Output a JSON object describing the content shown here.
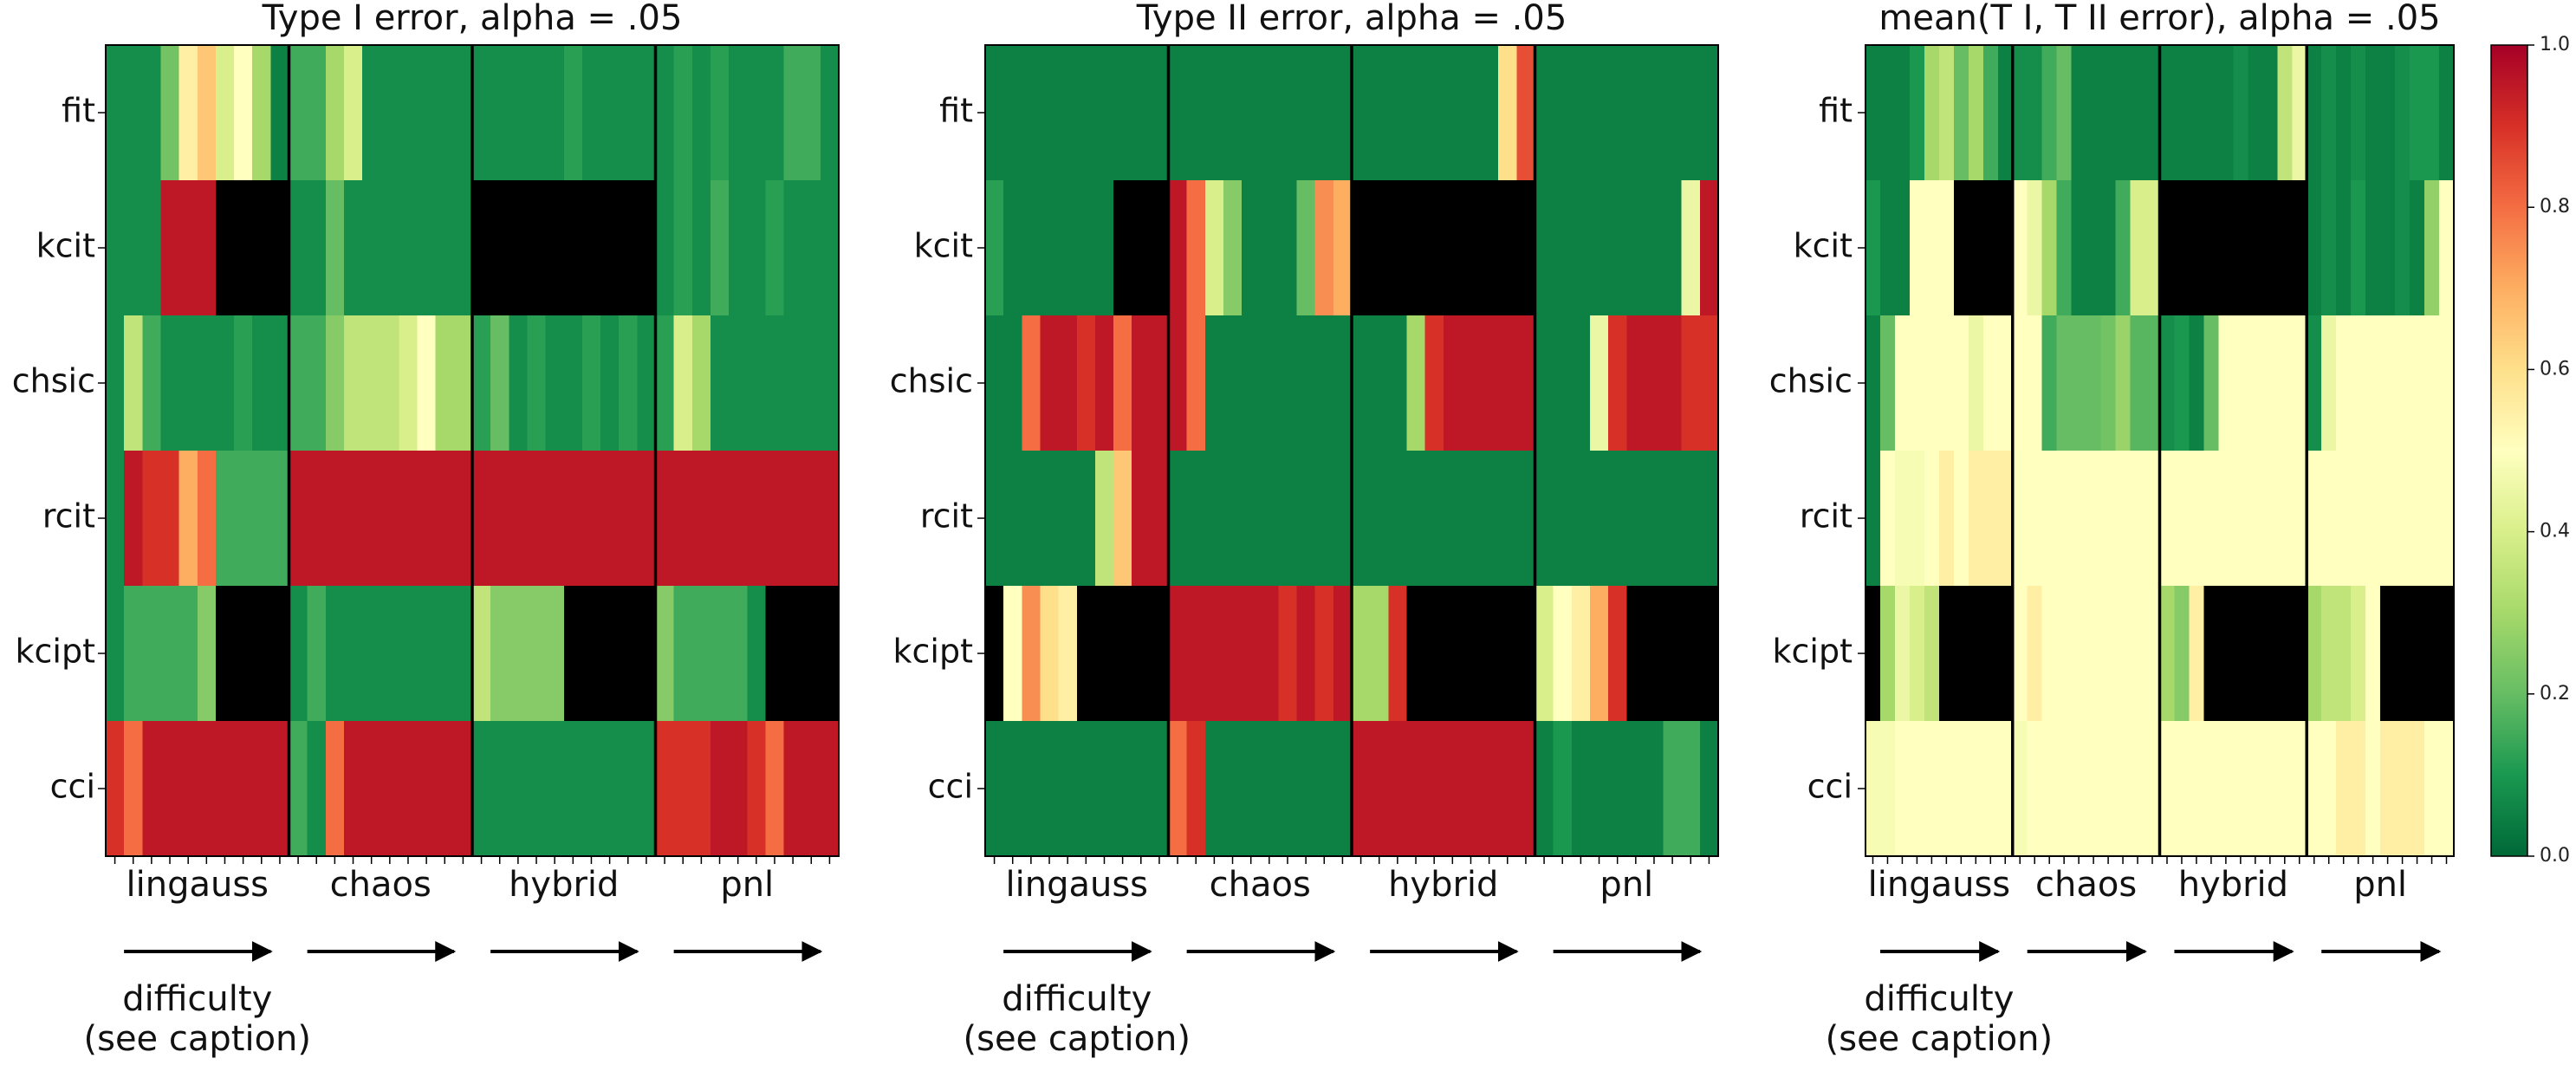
{
  "chart_data": [
    {
      "type": "heatmap",
      "title": "Type I error, alpha = .05",
      "rows": [
        "fit",
        "kcit",
        "chsic",
        "rcit",
        "kcipt",
        "cci"
      ],
      "groups": [
        "lingauss",
        "chaos",
        "hybrid",
        "pnl"
      ],
      "columns_per_group": [
        10,
        10,
        10,
        10
      ],
      "difficulty_label": "difficulty",
      "difficulty_note": "(see caption)",
      "missing_color": "#000000",
      "cells": [
        [
          [
            0.08,
            0.08,
            0.08,
            0.22,
            0.55,
            0.65,
            0.4,
            0.5,
            0.3,
            0.05
          ],
          [
            0.15,
            0.15,
            0.3,
            0.4,
            0.08,
            0.08,
            0.08,
            0.08,
            0.08,
            0.08
          ],
          [
            0.08,
            0.08,
            0.08,
            0.08,
            0.08,
            0.12,
            0.08,
            0.08,
            0.08,
            0.08
          ],
          [
            0.08,
            0.12,
            0.08,
            0.12,
            0.08,
            0.08,
            0.08,
            0.15,
            0.15,
            0.08
          ]
        ],
        [
          [
            0.08,
            0.08,
            0.08,
            0.95,
            0.95,
            0.95,
            null,
            null,
            null,
            null
          ],
          [
            0.08,
            0.08,
            0.2,
            0.08,
            0.08,
            0.08,
            0.08,
            0.08,
            0.08,
            0.08
          ],
          [
            null,
            null,
            null,
            null,
            null,
            null,
            null,
            null,
            null,
            null
          ],
          [
            0.08,
            0.12,
            0.08,
            0.15,
            0.08,
            0.08,
            0.12,
            0.08,
            0.08,
            0.08
          ]
        ],
        [
          [
            0.08,
            0.35,
            0.15,
            0.08,
            0.08,
            0.08,
            0.08,
            0.12,
            0.08,
            0.08
          ],
          [
            0.15,
            0.15,
            0.25,
            0.35,
            0.35,
            0.35,
            0.4,
            0.5,
            0.3,
            0.3
          ],
          [
            0.12,
            0.2,
            0.08,
            0.12,
            0.08,
            0.08,
            0.12,
            0.08,
            0.12,
            0.08
          ],
          [
            0.12,
            0.4,
            0.3,
            0.08,
            0.08,
            0.08,
            0.08,
            0.08,
            0.08,
            0.08
          ]
        ],
        [
          [
            0.08,
            0.95,
            0.9,
            0.9,
            0.7,
            0.8,
            0.15,
            0.15,
            0.15,
            0.15
          ],
          [
            0.95,
            0.95,
            0.95,
            0.95,
            0.95,
            0.95,
            0.95,
            0.95,
            0.95,
            0.95
          ],
          [
            0.95,
            0.95,
            0.95,
            0.95,
            0.95,
            0.95,
            0.95,
            0.95,
            0.95,
            0.95
          ],
          [
            0.95,
            0.95,
            0.95,
            0.95,
            0.95,
            0.95,
            0.95,
            0.95,
            0.95,
            0.95
          ]
        ],
        [
          [
            0.08,
            0.15,
            0.15,
            0.15,
            0.15,
            0.25,
            null,
            null,
            null,
            null
          ],
          [
            0.08,
            0.15,
            0.08,
            0.08,
            0.08,
            0.08,
            0.08,
            0.08,
            0.08,
            0.08
          ],
          [
            0.35,
            0.25,
            0.25,
            0.25,
            0.25,
            null,
            null,
            null,
            null,
            null
          ],
          [
            0.25,
            0.15,
            0.15,
            0.15,
            0.15,
            0.08,
            null,
            null,
            null,
            null
          ]
        ],
        [
          [
            0.9,
            0.8,
            0.95,
            0.95,
            0.95,
            0.95,
            0.95,
            0.95,
            0.95,
            0.95
          ],
          [
            0.15,
            0.08,
            0.8,
            0.95,
            0.95,
            0.95,
            0.95,
            0.95,
            0.95,
            0.95
          ],
          [
            0.08,
            0.08,
            0.08,
            0.08,
            0.08,
            0.08,
            0.08,
            0.08,
            0.08,
            0.08
          ],
          [
            0.9,
            0.9,
            0.9,
            0.95,
            0.95,
            0.9,
            0.8,
            0.95,
            0.95,
            0.95
          ]
        ]
      ]
    },
    {
      "type": "heatmap",
      "title": "Type II error, alpha = .05",
      "rows": [
        "fit",
        "kcit",
        "chsic",
        "rcit",
        "kcipt",
        "cci"
      ],
      "groups": [
        "lingauss",
        "chaos",
        "hybrid",
        "pnl"
      ],
      "columns_per_group": [
        10,
        10,
        10,
        10
      ],
      "difficulty_label": "difficulty",
      "difficulty_note": "(see caption)",
      "missing_color": "#000000",
      "cells": [
        [
          [
            0.05,
            0.05,
            0.05,
            0.05,
            0.05,
            0.05,
            0.05,
            0.05,
            0.05,
            0.05
          ],
          [
            0.05,
            0.05,
            0.05,
            0.05,
            0.05,
            0.05,
            0.05,
            0.05,
            0.05,
            0.05
          ],
          [
            0.05,
            0.05,
            0.05,
            0.05,
            0.05,
            0.05,
            0.05,
            0.05,
            0.6,
            0.85
          ],
          [
            0.05,
            0.05,
            0.05,
            0.05,
            0.05,
            0.05,
            0.05,
            0.05,
            0.05,
            0.05
          ]
        ],
        [
          [
            0.12,
            0.05,
            0.05,
            0.05,
            0.05,
            0.05,
            0.05,
            null,
            null,
            null
          ],
          [
            0.95,
            0.8,
            0.4,
            0.25,
            0.05,
            0.05,
            0.05,
            0.2,
            0.75,
            0.7
          ],
          [
            null,
            null,
            null,
            null,
            null,
            null,
            null,
            null,
            null,
            null
          ],
          [
            0.05,
            0.05,
            0.05,
            0.05,
            0.05,
            0.05,
            0.05,
            0.05,
            0.45,
            0.95
          ]
        ],
        [
          [
            0.05,
            0.05,
            0.8,
            0.95,
            0.95,
            0.9,
            0.95,
            0.8,
            0.95,
            0.95
          ],
          [
            0.95,
            0.8,
            0.05,
            0.05,
            0.05,
            0.05,
            0.05,
            0.05,
            0.05,
            0.05
          ],
          [
            0.05,
            0.05,
            0.05,
            0.3,
            0.9,
            0.95,
            0.95,
            0.95,
            0.95,
            0.95
          ],
          [
            0.05,
            0.05,
            0.05,
            0.45,
            0.9,
            0.95,
            0.95,
            0.95,
            0.9,
            0.9
          ]
        ],
        [
          [
            0.05,
            0.05,
            0.05,
            0.05,
            0.05,
            0.05,
            0.35,
            0.65,
            0.95,
            0.95
          ],
          [
            0.05,
            0.05,
            0.05,
            0.05,
            0.05,
            0.05,
            0.05,
            0.05,
            0.05,
            0.05
          ],
          [
            0.05,
            0.05,
            0.05,
            0.05,
            0.05,
            0.05,
            0.05,
            0.05,
            0.05,
            0.05
          ],
          [
            0.05,
            0.05,
            0.05,
            0.05,
            0.05,
            0.05,
            0.05,
            0.05,
            0.05,
            0.05
          ]
        ],
        [
          [
            null,
            0.5,
            0.75,
            0.6,
            0.55,
            null,
            null,
            null,
            null,
            null
          ],
          [
            0.95,
            0.95,
            0.95,
            0.95,
            0.95,
            0.95,
            0.9,
            0.95,
            0.9,
            0.95
          ],
          [
            0.3,
            0.3,
            0.9,
            null,
            null,
            null,
            null,
            null,
            null,
            null
          ],
          [
            0.4,
            0.5,
            0.55,
            0.7,
            0.9,
            null,
            null,
            null,
            null,
            null
          ]
        ],
        [
          [
            0.05,
            0.05,
            0.05,
            0.05,
            0.05,
            0.05,
            0.05,
            0.05,
            0.05,
            0.05
          ],
          [
            0.8,
            0.9,
            0.05,
            0.05,
            0.05,
            0.05,
            0.05,
            0.05,
            0.05,
            0.05
          ],
          [
            0.95,
            0.95,
            0.95,
            0.95,
            0.95,
            0.95,
            0.95,
            0.95,
            0.95,
            0.95
          ],
          [
            0.05,
            0.1,
            0.05,
            0.05,
            0.05,
            0.05,
            0.05,
            0.15,
            0.15,
            0.05
          ]
        ]
      ]
    },
    {
      "type": "heatmap",
      "title": "mean(T I, T II error), alpha = .05",
      "rows": [
        "fit",
        "kcit",
        "chsic",
        "rcit",
        "kcipt",
        "cci"
      ],
      "groups": [
        "lingauss",
        "chaos",
        "hybrid",
        "pnl"
      ],
      "columns_per_group": [
        10,
        10,
        10,
        10
      ],
      "difficulty_label": "difficulty",
      "difficulty_note": "(see caption)",
      "missing_color": "#000000",
      "colorbar": {
        "min": 0.0,
        "max": 1.0,
        "ticks": [
          "0.0",
          "0.2",
          "0.4",
          "0.6",
          "0.8",
          "1.0"
        ]
      },
      "cells": [
        [
          [
            0.05,
            0.05,
            0.05,
            0.1,
            0.3,
            0.35,
            0.2,
            0.3,
            0.15,
            0.05
          ],
          [
            0.08,
            0.08,
            0.15,
            0.2,
            0.05,
            0.05,
            0.05,
            0.05,
            0.05,
            0.05
          ],
          [
            0.05,
            0.05,
            0.05,
            0.05,
            0.05,
            0.08,
            0.05,
            0.05,
            0.35,
            0.45
          ],
          [
            0.05,
            0.08,
            0.05,
            0.08,
            0.05,
            0.05,
            0.08,
            0.1,
            0.1,
            0.05
          ]
        ],
        [
          [
            0.1,
            0.05,
            0.05,
            0.5,
            0.5,
            0.5,
            null,
            null,
            null,
            null
          ],
          [
            0.5,
            0.45,
            0.3,
            0.15,
            0.05,
            0.05,
            0.05,
            0.15,
            0.4,
            0.4
          ],
          [
            null,
            null,
            null,
            null,
            null,
            null,
            null,
            null,
            null,
            null
          ],
          [
            0.05,
            0.08,
            0.05,
            0.1,
            0.05,
            0.05,
            0.08,
            0.05,
            0.27,
            0.5
          ]
        ],
        [
          [
            0.05,
            0.2,
            0.5,
            0.5,
            0.5,
            0.5,
            0.5,
            0.45,
            0.5,
            0.5
          ],
          [
            0.5,
            0.5,
            0.15,
            0.2,
            0.2,
            0.2,
            0.22,
            0.28,
            0.18,
            0.18
          ],
          [
            0.08,
            0.1,
            0.05,
            0.2,
            0.5,
            0.5,
            0.5,
            0.5,
            0.5,
            0.5
          ],
          [
            0.08,
            0.45,
            0.5,
            0.5,
            0.5,
            0.5,
            0.5,
            0.5,
            0.5,
            0.5
          ]
        ],
        [
          [
            0.05,
            0.5,
            0.48,
            0.48,
            0.5,
            0.55,
            0.5,
            0.55,
            0.55,
            0.55
          ],
          [
            0.5,
            0.5,
            0.5,
            0.5,
            0.5,
            0.5,
            0.5,
            0.5,
            0.5,
            0.5
          ],
          [
            0.5,
            0.5,
            0.5,
            0.5,
            0.5,
            0.5,
            0.5,
            0.5,
            0.5,
            0.5
          ],
          [
            0.5,
            0.5,
            0.5,
            0.5,
            0.5,
            0.5,
            0.5,
            0.5,
            0.5,
            0.5
          ]
        ],
        [
          [
            null,
            0.3,
            0.45,
            0.4,
            0.35,
            null,
            null,
            null,
            null,
            null
          ],
          [
            0.5,
            0.55,
            0.5,
            0.5,
            0.5,
            0.5,
            0.5,
            0.5,
            0.5,
            0.5
          ],
          [
            0.3,
            0.25,
            0.55,
            null,
            null,
            null,
            null,
            null,
            null,
            null
          ],
          [
            0.3,
            0.35,
            0.35,
            0.4,
            0.5,
            null,
            null,
            null,
            null,
            null
          ]
        ],
        [
          [
            0.48,
            0.48,
            0.5,
            0.5,
            0.5,
            0.5,
            0.5,
            0.5,
            0.5,
            0.5
          ],
          [
            0.48,
            0.5,
            0.5,
            0.5,
            0.5,
            0.5,
            0.5,
            0.5,
            0.5,
            0.5
          ],
          [
            0.5,
            0.5,
            0.5,
            0.5,
            0.5,
            0.5,
            0.5,
            0.5,
            0.5,
            0.5
          ],
          [
            0.5,
            0.5,
            0.55,
            0.55,
            0.5,
            0.55,
            0.55,
            0.55,
            0.5,
            0.5
          ]
        ]
      ]
    }
  ]
}
